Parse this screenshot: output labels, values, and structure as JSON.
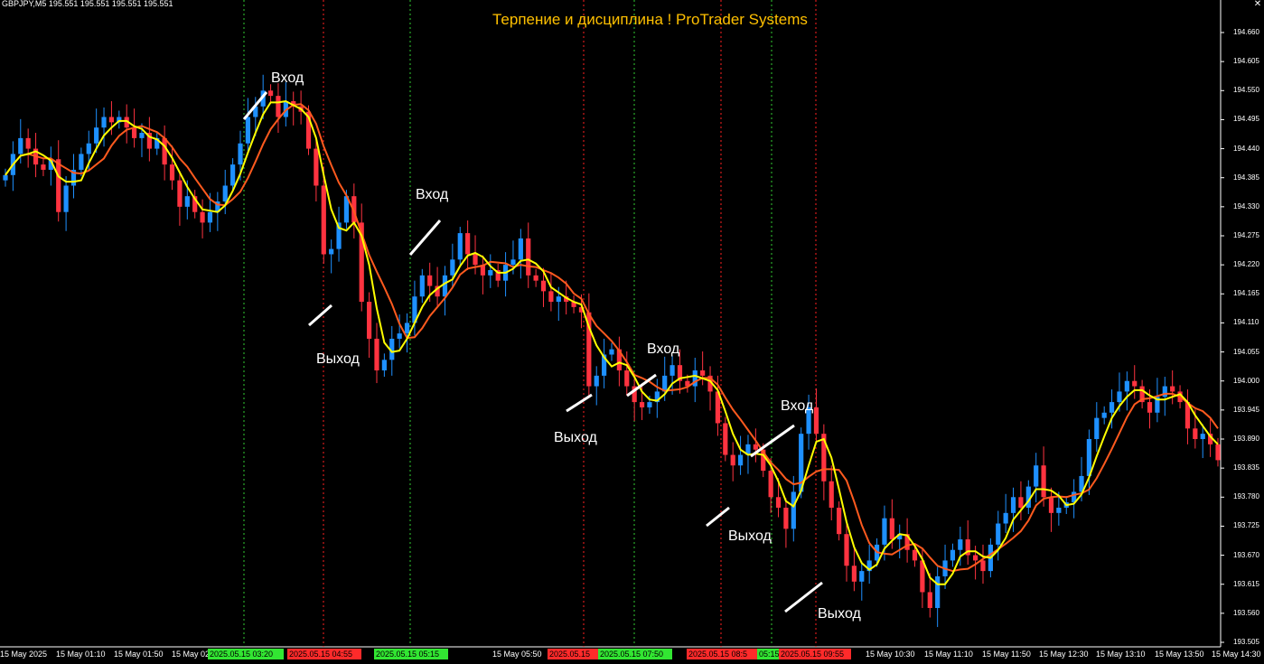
{
  "symbol_info": "GBPJPY,M5  195.551 195.551 195.551 195.551",
  "title": "Терпение и дисциплина !   ProTrader Systems",
  "colors": {
    "background": "#000000",
    "bull": "#1e90ff",
    "bear": "#ff3340",
    "ma_fast": "#ffff00",
    "ma_slow": "#ff5a1e",
    "entry_line": "#32cd32",
    "exit_line": "#ff2020",
    "title": "#ffc000"
  },
  "price_axis": {
    "labels": [
      "194.660",
      "194.605",
      "194.550",
      "194.495",
      "194.440",
      "194.385",
      "194.330",
      "194.275",
      "194.220",
      "194.165",
      "194.110",
      "194.055",
      "194.000",
      "193.945",
      "193.890",
      "193.835",
      "193.780",
      "193.725",
      "193.670",
      "193.615",
      "193.560",
      "193.505"
    ]
  },
  "time_axis": {
    "labels": [
      "15 May 2025",
      "15 May 01:10",
      "15 May 01:50",
      "15 May 02:",
      "15 May 05:50",
      "15 May 10:30",
      "15 May 11:10",
      "15 May 11:50",
      "15 May 12:30",
      "15 May 13:10",
      "15 May 13:50",
      "15 May 14:30"
    ],
    "tags": [
      {
        "text": "2025.05.15 03:20",
        "kind": "entry"
      },
      {
        "text": "2025.05.15 04:55",
        "kind": "exit"
      },
      {
        "text": "2025.05.15 05:15",
        "kind": "entry"
      },
      {
        "text": "2025.05.15",
        "kind": "exit"
      },
      {
        "text": "2025.05.15 07:50",
        "kind": "entry"
      },
      {
        "text": "2025.05.15 08:5",
        "kind": "exit"
      },
      {
        "text": "05:15",
        "kind": "entry"
      },
      {
        "text": "2025.05.15 09:55",
        "kind": "exit"
      }
    ]
  },
  "annotations": [
    {
      "text": "Вход",
      "kind": "entry"
    },
    {
      "text": "Выход",
      "kind": "exit"
    },
    {
      "text": "Вход",
      "kind": "entry"
    },
    {
      "text": "Выход",
      "kind": "exit"
    },
    {
      "text": "Вход",
      "kind": "entry"
    },
    {
      "text": "Выход",
      "kind": "exit"
    },
    {
      "text": "Вход",
      "kind": "entry"
    },
    {
      "text": "Выход",
      "kind": "exit"
    }
  ],
  "trade_lines": [
    {
      "time": "2025.05.15 03:20",
      "kind": "entry"
    },
    {
      "time": "2025.05.15 04:55",
      "kind": "exit"
    },
    {
      "time": "2025.05.15 05:15",
      "kind": "entry"
    },
    {
      "time": "2025.05.15",
      "kind": "exit"
    },
    {
      "time": "2025.05.15 07:50",
      "kind": "entry"
    },
    {
      "time": "2025.05.15 08:5",
      "kind": "exit"
    },
    {
      "time": "05:15",
      "kind": "entry"
    },
    {
      "time": "2025.05.15 09:55",
      "kind": "exit"
    }
  ],
  "chart_data": {
    "type": "candlestick",
    "symbol": "GBPJPY",
    "timeframe": "M5",
    "ylim": [
      193.505,
      194.66
    ],
    "close": [
      194.39,
      194.43,
      194.46,
      194.44,
      194.41,
      194.4,
      194.42,
      194.32,
      194.37,
      194.4,
      194.43,
      194.45,
      194.48,
      194.5,
      194.49,
      194.5,
      194.48,
      194.46,
      194.47,
      194.44,
      194.46,
      194.41,
      194.38,
      194.33,
      194.35,
      194.32,
      194.3,
      194.32,
      194.34,
      194.37,
      194.41,
      194.45,
      194.5,
      194.52,
      194.55,
      194.54,
      194.5,
      194.53,
      194.52,
      194.51,
      194.44,
      194.37,
      194.24,
      194.25,
      194.3,
      194.35,
      194.3,
      194.15,
      194.08,
      194.02,
      194.04,
      194.08,
      194.09,
      194.11,
      194.16,
      194.2,
      194.18,
      194.16,
      194.2,
      194.23,
      194.28,
      194.24,
      194.22,
      194.2,
      194.21,
      194.19,
      194.22,
      194.23,
      194.27,
      194.2,
      194.19,
      194.17,
      194.15,
      194.16,
      194.15,
      194.14,
      194.13,
      193.99,
      194.01,
      194.05,
      194.06,
      194.02,
      193.99,
      193.96,
      193.95,
      193.96,
      193.98,
      194.01,
      194.03,
      194.0,
      193.99,
      194.02,
      194.01,
      193.98,
      193.92,
      193.86,
      193.84,
      193.86,
      193.88,
      193.87,
      193.83,
      193.78,
      193.76,
      193.72,
      193.79,
      193.9,
      193.95,
      193.9,
      193.81,
      193.76,
      193.71,
      193.65,
      193.62,
      193.64,
      193.66,
      193.69,
      193.74,
      193.7,
      193.71,
      193.68,
      193.66,
      193.6,
      193.57,
      193.63,
      193.66,
      193.68,
      193.7,
      193.67,
      193.66,
      193.64,
      193.69,
      193.73,
      193.75,
      193.78,
      193.76,
      193.8,
      193.84,
      193.78,
      193.75,
      193.76,
      193.77,
      193.79,
      193.82,
      193.89,
      193.93,
      193.94,
      193.96,
      193.98,
      194.0,
      193.99,
      193.96,
      193.94,
      193.97,
      193.99,
      193.98,
      193.96,
      193.91,
      193.89,
      193.9,
      193.88,
      193.85
    ]
  }
}
